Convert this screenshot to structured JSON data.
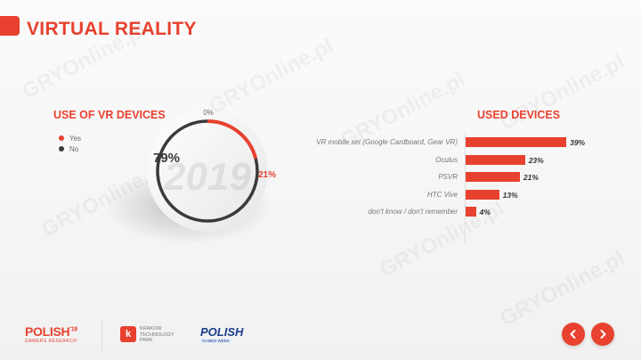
{
  "page": {
    "title": "VIRTUAL REALITY",
    "watermark_text": "GRYOnline.pl"
  },
  "left_chart": {
    "title": "USE OF VR DEVICES",
    "center_year": "2019"
  },
  "right_chart": {
    "title": "USED DEVICES"
  },
  "chart_data": [
    {
      "type": "pie",
      "title": "USE OF VR DEVICES",
      "categories": [
        "Yes",
        "No"
      ],
      "values": [
        21,
        79
      ],
      "value_labels": [
        "21%",
        "79%"
      ],
      "start_label": "0%",
      "colors": [
        "#e8412f",
        "#3a3a3a"
      ],
      "legend": "left"
    },
    {
      "type": "bar",
      "title": "USED DEVICES",
      "categories": [
        "VR mobile set (Google Cardboard, Gear VR)",
        "Oculus",
        "PSVR",
        "HTC Vive",
        "don't know / don't remember"
      ],
      "values": [
        39,
        23,
        21,
        13,
        4
      ],
      "value_labels": [
        "39%",
        "23%",
        "21%",
        "13%",
        "4%"
      ],
      "orientation": "horizontal",
      "color": "#e8412f"
    }
  ],
  "footer": {
    "logo_polish_gamers": "POLISH",
    "logo_polish_gamers_sup": "'19",
    "logo_polish_gamers_sub": "GAMERS RESEARCH",
    "logo_ktp_mark": "k",
    "logo_ktp_line1": "KRAKOW",
    "logo_ktp_line2": "TECHNOLOGY",
    "logo_ktp_line3": "PARK",
    "logo_pgw": "POLISH",
    "logo_pgw_sub": "GAMES WEEK"
  },
  "nav": {
    "prev_icon": "chevron-left-icon",
    "next_icon": "chevron-right-icon"
  },
  "colors": {
    "accent": "#e8412f",
    "dark": "#3a3a3a"
  }
}
